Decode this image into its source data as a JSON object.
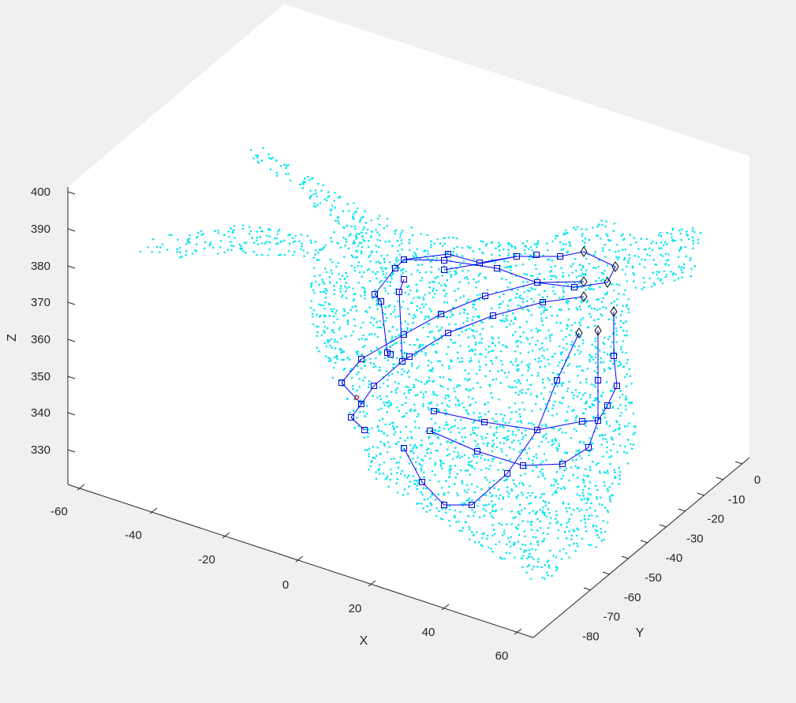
{
  "chart_data": {
    "type": "scatter",
    "title": "",
    "xlabel": "X",
    "ylabel": "Y",
    "zlabel": "Z",
    "xlim": [
      -65,
      65
    ],
    "ylim": [
      -85,
      5
    ],
    "zlim": [
      320,
      400
    ],
    "x_ticks": [
      "-60",
      "-40",
      "-20",
      "0",
      "20",
      "40",
      "60"
    ],
    "y_ticks": [
      "0",
      "-10",
      "-20",
      "-30",
      "-40",
      "-50",
      "-60",
      "-70",
      "-80"
    ],
    "z_ticks": [
      "400",
      "390",
      "380",
      "370",
      "360",
      "350",
      "340",
      "330"
    ],
    "grid": false,
    "series": [
      {
        "marker": "point",
        "color": "#00e5ee",
        "description_points": "dense surface point cloud"
      },
      {
        "marker": "square",
        "color": "#0000cc",
        "line_color": "#0000ff"
      },
      {
        "marker": "diamond",
        "color": "#000000"
      },
      {
        "marker": "point",
        "color": "#ff0000"
      }
    ]
  }
}
